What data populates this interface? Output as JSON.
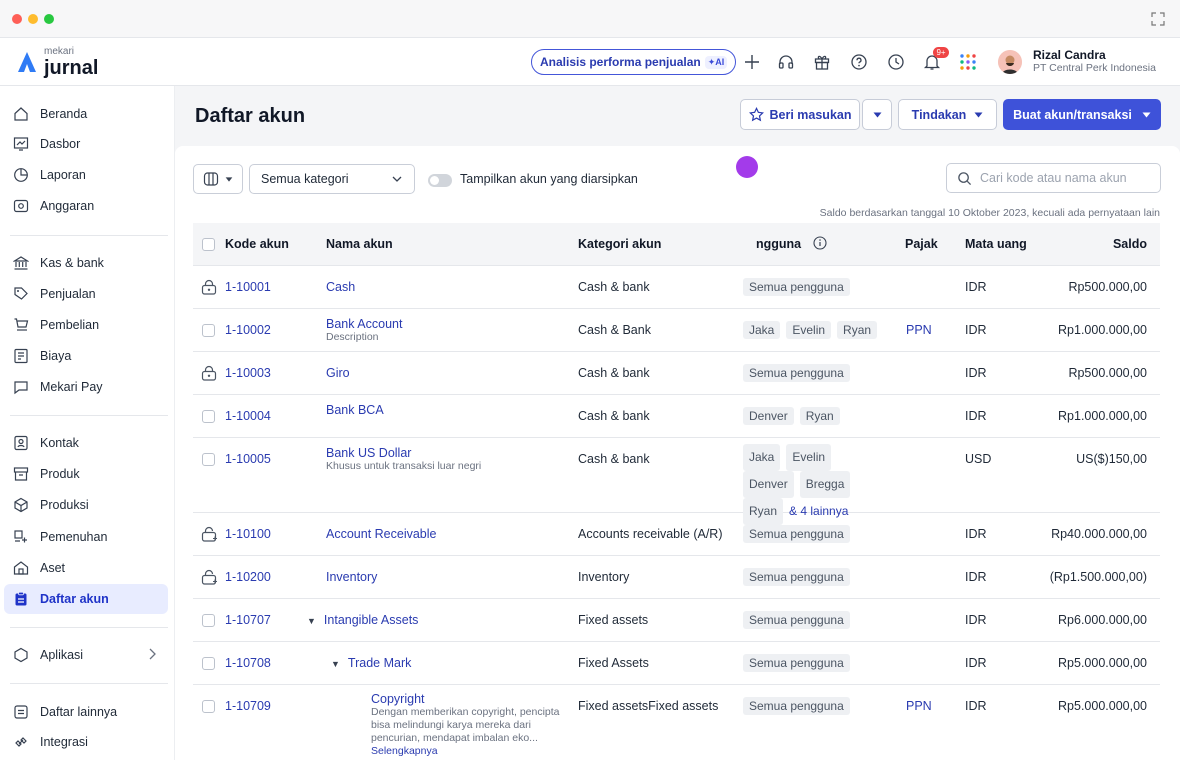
{
  "app": {
    "brand_small": "mekari",
    "brand_big": "jurnal",
    "ai_pill_label": "Analisis performa penjualan",
    "ai_badge": "✦AI",
    "notif_count": "9+",
    "user_name": "Rizal Candra",
    "user_company": "PT Central Perk Indonesia"
  },
  "sidebar": {
    "items": [
      {
        "label": "Beranda",
        "icon": "home-icon"
      },
      {
        "label": "Dasbor",
        "icon": "dashboard-icon"
      },
      {
        "label": "Laporan",
        "icon": "report-icon"
      },
      {
        "label": "Anggaran",
        "icon": "budget-icon"
      },
      {
        "label": "Kas & bank",
        "icon": "bank-icon"
      },
      {
        "label": "Penjualan",
        "icon": "sales-icon"
      },
      {
        "label": "Pembelian",
        "icon": "purchase-icon"
      },
      {
        "label": "Biaya",
        "icon": "expense-icon"
      },
      {
        "label": "Mekari Pay",
        "icon": "pay-icon"
      },
      {
        "label": "Kontak",
        "icon": "contact-icon"
      },
      {
        "label": "Produk",
        "icon": "product-icon"
      },
      {
        "label": "Produksi",
        "icon": "production-icon"
      },
      {
        "label": "Pemenuhan",
        "icon": "fulfillment-icon"
      },
      {
        "label": "Aset",
        "icon": "asset-icon"
      },
      {
        "label": "Daftar akun",
        "icon": "account-list-icon"
      },
      {
        "label": "Aplikasi",
        "icon": "apps-icon"
      },
      {
        "label": "Daftar lainnya",
        "icon": "other-list-icon"
      },
      {
        "label": "Integrasi",
        "icon": "integration-icon"
      }
    ]
  },
  "page": {
    "title": "Daftar akun",
    "feedback_label": "Beri masukan",
    "action_label": "Tindakan",
    "create_label": "Buat akun/transaksi",
    "category_value": "Semua kategori",
    "toggle_label": "Tampilkan akun yang diarsipkan",
    "search_placeholder": "Cari kode atau nama akun",
    "saldo_note": "Saldo berdasarkan tanggal 10 Oktober 2023, kecuali ada pernyataan lain"
  },
  "table": {
    "headers": {
      "code": "Kode akun",
      "name": "Nama akun",
      "category": "Kategori akun",
      "users": "ngguna",
      "tax": "Pajak",
      "currency": "Mata uang",
      "balance": "Saldo"
    },
    "rows": [
      {
        "code": "1-10001",
        "name": "Cash",
        "desc": "",
        "category": "Cash & bank",
        "users": [
          "Semua pengguna"
        ],
        "tax": "",
        "currency": "IDR",
        "balance": "Rp500.000,00"
      },
      {
        "code": "1-10002",
        "name": "Bank Account",
        "desc": "Description",
        "category": "Cash & Bank",
        "users": [
          "Jaka",
          "Evelin",
          "Ryan"
        ],
        "tax": "PPN",
        "currency": "IDR",
        "balance": "Rp1.000.000,00"
      },
      {
        "code": "1-10003",
        "name": "Giro",
        "desc": "",
        "category": "Cash & bank",
        "users": [
          "Semua pengguna"
        ],
        "tax": "",
        "currency": "IDR",
        "balance": "Rp500.000,00"
      },
      {
        "code": "1-10004",
        "name": "Bank BCA",
        "desc": "",
        "category": "Cash & bank",
        "users": [
          "Denver",
          "Ryan"
        ],
        "tax": "",
        "currency": "IDR",
        "balance": "Rp1.000.000,00"
      },
      {
        "code": "1-10005",
        "name": "Bank US Dollar",
        "desc": "Khusus untuk transaksi luar negri",
        "category": "Cash & bank",
        "users": [
          "Jaka",
          "Evelin",
          "Denver",
          "Bregga",
          "Ryan"
        ],
        "users_more": "& 4 lainnya",
        "tax": "",
        "currency": "USD",
        "balance": "US($)150,00"
      },
      {
        "code": "1-10100",
        "name": "Account Receivable",
        "desc": "",
        "category": "Accounts receivable (A/R)",
        "users": [
          "Semua pengguna"
        ],
        "tax": "",
        "currency": "IDR",
        "balance": "Rp40.000.000,00"
      },
      {
        "code": "1-10200",
        "name": "Inventory",
        "desc": "",
        "category": "Inventory",
        "users": [
          "Semua pengguna"
        ],
        "tax": "",
        "currency": "IDR",
        "balance": "(Rp1.500.000,00)"
      },
      {
        "code": "1-10707",
        "name": "Intangible Assets",
        "desc": "",
        "category": "Fixed assets",
        "users": [
          "Semua pengguna"
        ],
        "tax": "",
        "currency": "IDR",
        "balance": "Rp6.000.000,00"
      },
      {
        "code": "1-10708",
        "name": "Trade Mark",
        "desc": "",
        "category": "Fixed Assets",
        "users": [
          "Semua pengguna"
        ],
        "tax": "",
        "currency": "IDR",
        "balance": "Rp5.000.000,00"
      },
      {
        "code": "1-10709",
        "name": "Copyright",
        "desc": "Dengan memberikan copyright, pencipta bisa melindungi karya mereka dari pencurian, mendapat imbalan eko...",
        "more": "Selengkapnya",
        "category": "Fixed assetsFixed assets",
        "users": [
          "Semua pengguna"
        ],
        "tax": "PPN",
        "currency": "IDR",
        "balance": "Rp5.000.000,00"
      }
    ]
  }
}
